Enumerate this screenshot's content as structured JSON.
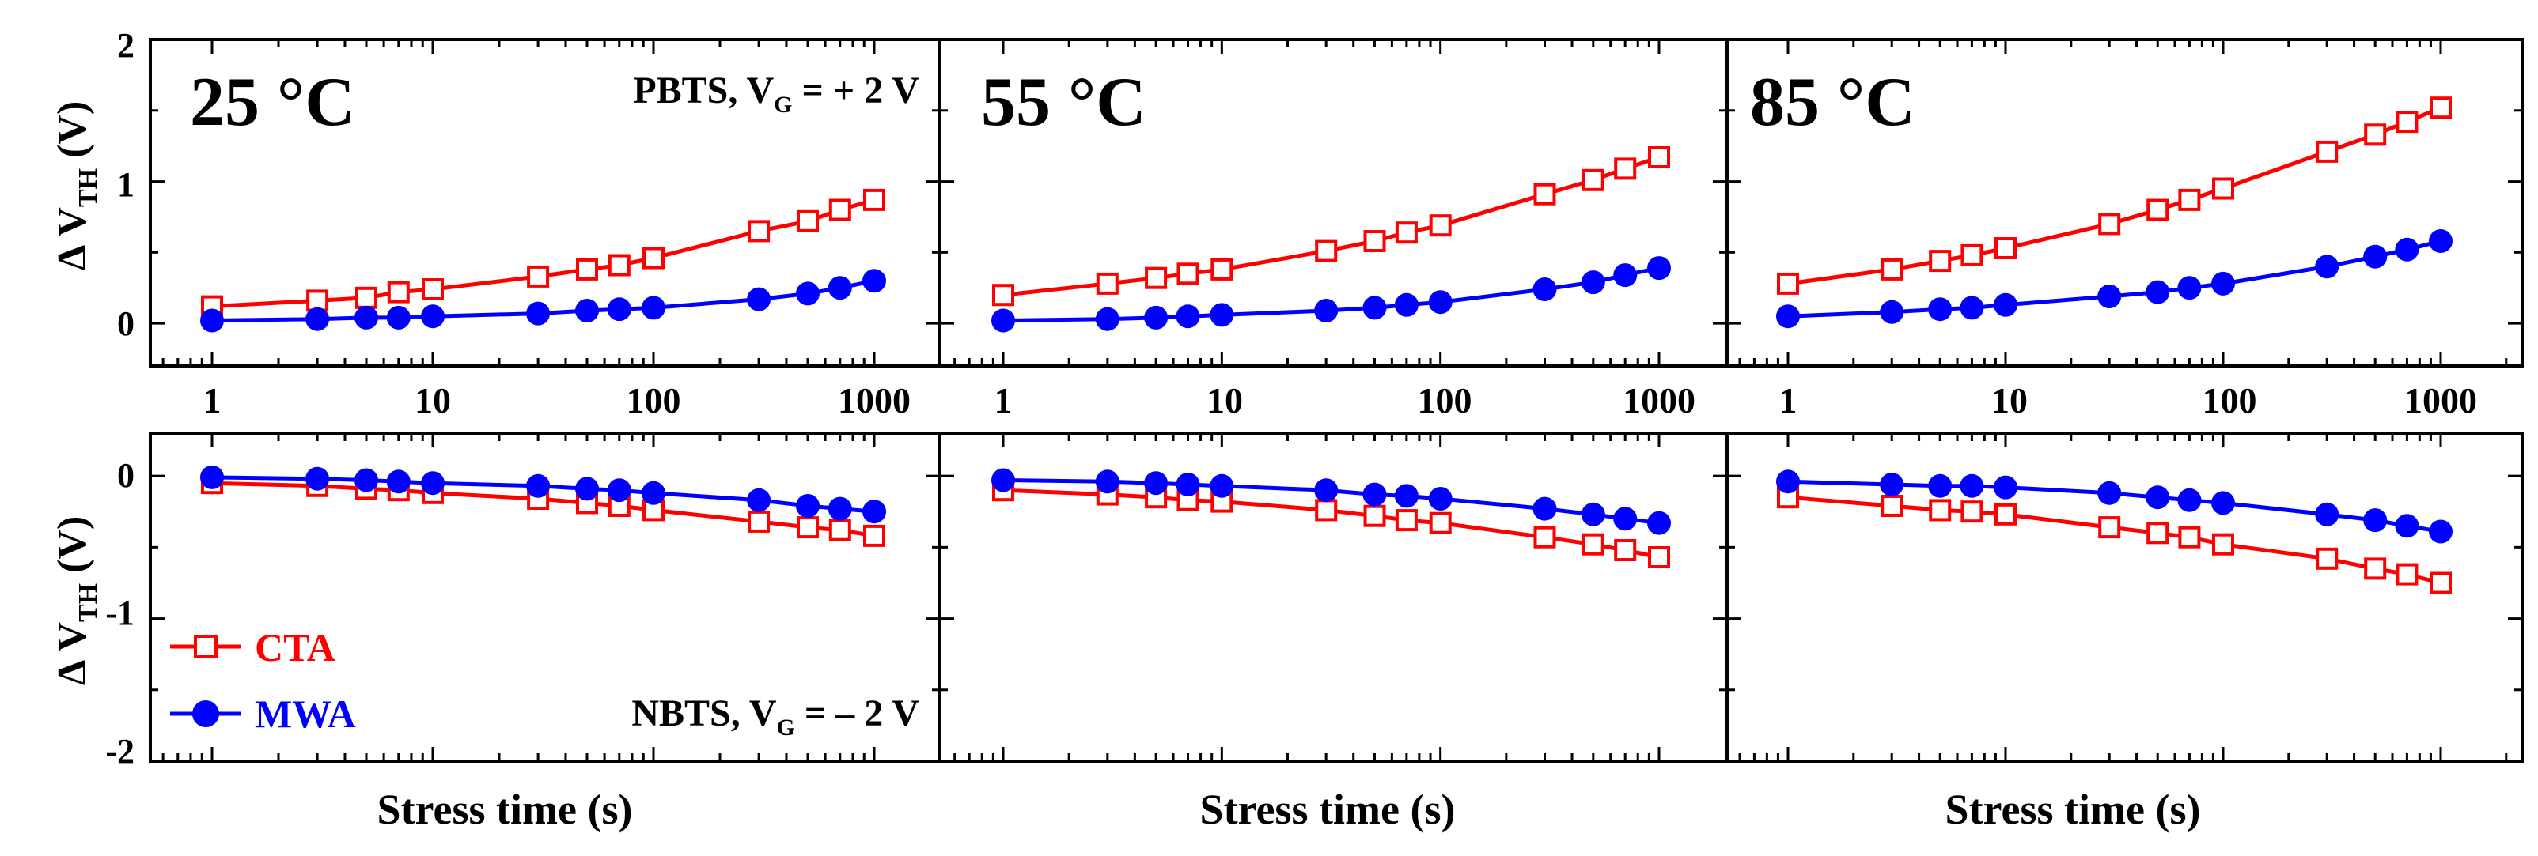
{
  "colors": {
    "cta": "#ff0000",
    "mwa": "#0000ff",
    "axis": "#000000"
  },
  "labels": {
    "ylabel_main": "Δ V",
    "ylabel_sub": "TH",
    "ylabel_unit": " (V)",
    "xlabel": "Stress time (s)",
    "pbts_prefix": "PBTS, V",
    "pbts_sub": "G",
    "pbts_suffix": " = + 2 V",
    "nbts_prefix": "NBTS, V",
    "nbts_sub": "G",
    "nbts_suffix": " = – 2 V"
  },
  "legend": [
    {
      "name": "CTA",
      "marker": "open-square",
      "color": "#ff0000"
    },
    {
      "name": "MWA",
      "marker": "filled-circle",
      "color": "#0000ff"
    }
  ],
  "temperatures": [
    "25 °C",
    "55 °C",
    "85 °C"
  ],
  "x_tick_labels": [
    "1",
    "10",
    "100",
    "1000"
  ],
  "y_tick_labels_top": [
    "2",
    "1",
    "0"
  ],
  "y_tick_labels_bottom": [
    "0",
    "-1",
    "-2"
  ],
  "chart_data": [
    {
      "type": "line",
      "panel": "PBTS 25 °C",
      "title": "25 °C",
      "xscale": "log",
      "xlim": [
        0.5,
        2000
      ],
      "ylim": [
        -0.3,
        2
      ],
      "xlabel": "",
      "ylabel": "Δ V_TH (V)",
      "x": [
        1,
        3,
        5,
        7,
        10,
        30,
        50,
        70,
        100,
        300,
        500,
        700,
        1000
      ],
      "series": [
        {
          "name": "CTA",
          "values": [
            0.12,
            0.16,
            0.18,
            0.22,
            0.24,
            0.33,
            0.38,
            0.41,
            0.46,
            0.65,
            0.72,
            0.8,
            0.87
          ]
        },
        {
          "name": "MWA",
          "values": [
            0.02,
            0.03,
            0.04,
            0.04,
            0.05,
            0.07,
            0.09,
            0.1,
            0.11,
            0.17,
            0.21,
            0.25,
            0.3
          ]
        }
      ]
    },
    {
      "type": "line",
      "panel": "PBTS 55 °C",
      "title": "55 °C",
      "xscale": "log",
      "xlim": [
        0.5,
        2000
      ],
      "ylim": [
        -0.3,
        2
      ],
      "xlabel": "",
      "ylabel": "",
      "x": [
        1,
        3,
        5,
        7,
        10,
        30,
        50,
        70,
        100,
        300,
        500,
        700,
        1000
      ],
      "series": [
        {
          "name": "CTA",
          "values": [
            0.2,
            0.28,
            0.32,
            0.35,
            0.38,
            0.51,
            0.58,
            0.64,
            0.69,
            0.91,
            1.01,
            1.09,
            1.17
          ]
        },
        {
          "name": "MWA",
          "values": [
            0.02,
            0.03,
            0.04,
            0.05,
            0.06,
            0.09,
            0.11,
            0.13,
            0.15,
            0.24,
            0.29,
            0.34,
            0.39
          ]
        }
      ]
    },
    {
      "type": "line",
      "panel": "PBTS 85 °C",
      "title": "85 °C",
      "xscale": "log",
      "xlim": [
        0.5,
        2000
      ],
      "ylim": [
        -0.3,
        2
      ],
      "xlabel": "",
      "ylabel": "",
      "x": [
        1,
        3,
        5,
        7,
        10,
        30,
        50,
        70,
        100,
        300,
        500,
        700,
        1000
      ],
      "series": [
        {
          "name": "CTA",
          "values": [
            0.28,
            0.38,
            0.44,
            0.48,
            0.53,
            0.7,
            0.8,
            0.87,
            0.95,
            1.21,
            1.33,
            1.42,
            1.52
          ]
        },
        {
          "name": "MWA",
          "values": [
            0.05,
            0.08,
            0.1,
            0.11,
            0.13,
            0.19,
            0.22,
            0.25,
            0.28,
            0.4,
            0.47,
            0.52,
            0.58
          ]
        }
      ]
    },
    {
      "type": "line",
      "panel": "NBTS 25 °C",
      "title": "",
      "xscale": "log",
      "xlim": [
        0.5,
        2000
      ],
      "ylim": [
        -2,
        0.3
      ],
      "xlabel": "Stress time (s)",
      "ylabel": "Δ V_TH (V)",
      "x": [
        1,
        3,
        5,
        7,
        10,
        30,
        50,
        70,
        100,
        300,
        500,
        700,
        1000
      ],
      "series": [
        {
          "name": "CTA",
          "values": [
            -0.05,
            -0.07,
            -0.09,
            -0.1,
            -0.12,
            -0.16,
            -0.19,
            -0.21,
            -0.24,
            -0.32,
            -0.36,
            -0.38,
            -0.42
          ]
        },
        {
          "name": "MWA",
          "values": [
            -0.01,
            -0.02,
            -0.03,
            -0.04,
            -0.05,
            -0.07,
            -0.09,
            -0.1,
            -0.12,
            -0.17,
            -0.21,
            -0.23,
            -0.25
          ]
        }
      ]
    },
    {
      "type": "line",
      "panel": "NBTS 55 °C",
      "title": "",
      "xscale": "log",
      "xlim": [
        0.5,
        2000
      ],
      "ylim": [
        -2,
        0.3
      ],
      "xlabel": "Stress time (s)",
      "ylabel": "",
      "x": [
        1,
        3,
        5,
        7,
        10,
        30,
        50,
        70,
        100,
        300,
        500,
        700,
        1000
      ],
      "series": [
        {
          "name": "CTA",
          "values": [
            -0.1,
            -0.13,
            -0.15,
            -0.17,
            -0.18,
            -0.24,
            -0.28,
            -0.31,
            -0.33,
            -0.43,
            -0.48,
            -0.52,
            -0.57
          ]
        },
        {
          "name": "MWA",
          "values": [
            -0.03,
            -0.04,
            -0.05,
            -0.06,
            -0.07,
            -0.1,
            -0.13,
            -0.14,
            -0.16,
            -0.23,
            -0.27,
            -0.3,
            -0.33
          ]
        }
      ]
    },
    {
      "type": "line",
      "panel": "NBTS 85 °C",
      "title": "",
      "xscale": "log",
      "xlim": [
        0.5,
        2000
      ],
      "ylim": [
        -2,
        0.3
      ],
      "xlabel": "Stress time (s)",
      "ylabel": "",
      "x": [
        1,
        3,
        5,
        7,
        10,
        30,
        50,
        70,
        100,
        300,
        500,
        700,
        1000
      ],
      "series": [
        {
          "name": "CTA",
          "values": [
            -0.15,
            -0.21,
            -0.24,
            -0.25,
            -0.27,
            -0.36,
            -0.4,
            -0.43,
            -0.48,
            -0.58,
            -0.65,
            -0.69,
            -0.75
          ]
        },
        {
          "name": "MWA",
          "values": [
            -0.04,
            -0.06,
            -0.07,
            -0.07,
            -0.08,
            -0.12,
            -0.15,
            -0.17,
            -0.19,
            -0.27,
            -0.31,
            -0.35,
            -0.39
          ]
        }
      ]
    }
  ]
}
